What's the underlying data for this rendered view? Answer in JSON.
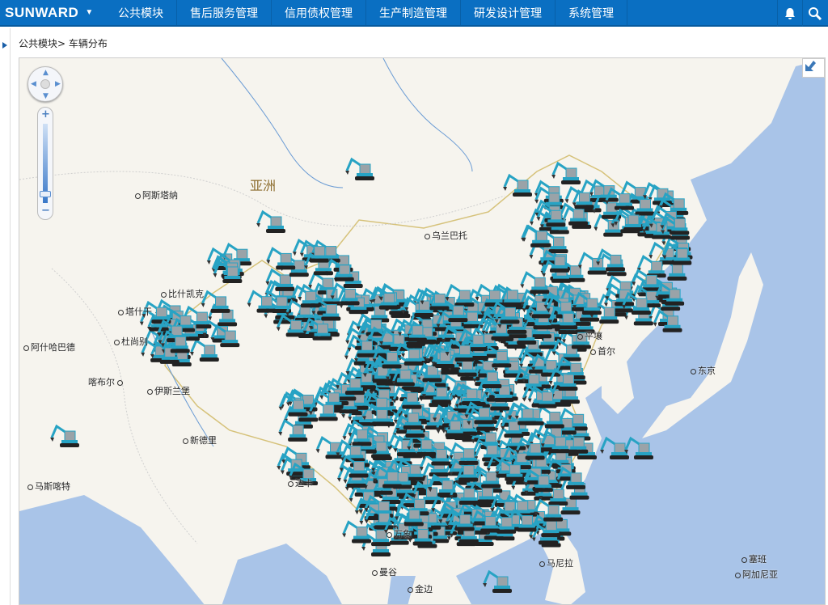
{
  "nav": {
    "logo": "SUNWARD",
    "menu": [
      "公共模块",
      "售后服务管理",
      "信用债权管理",
      "生产制造管理",
      "研发设计管理",
      "系统管理"
    ]
  },
  "breadcrumb": "公共模块> 车辆分布",
  "map": {
    "continent_label": "亚洲",
    "cities": [
      "阿斯塔纳",
      "乌兰巴托",
      "比什凯克",
      "塔什干",
      "杜尚别",
      "阿什哈巴德",
      "喀布尔",
      "伊斯兰堡",
      "新德里",
      "马斯喀特",
      "达卡",
      "万象",
      "曼谷",
      "金边",
      "马尼拉",
      "东京",
      "平壤",
      "首尔",
      "塞班",
      "阿加尼亚"
    ],
    "marker_icon": "excavator-icon",
    "colors": {
      "land": "#f6f4ee",
      "sea": "#a9c4e8",
      "marker": "#27a3c4",
      "border": "#d6c27a"
    }
  }
}
